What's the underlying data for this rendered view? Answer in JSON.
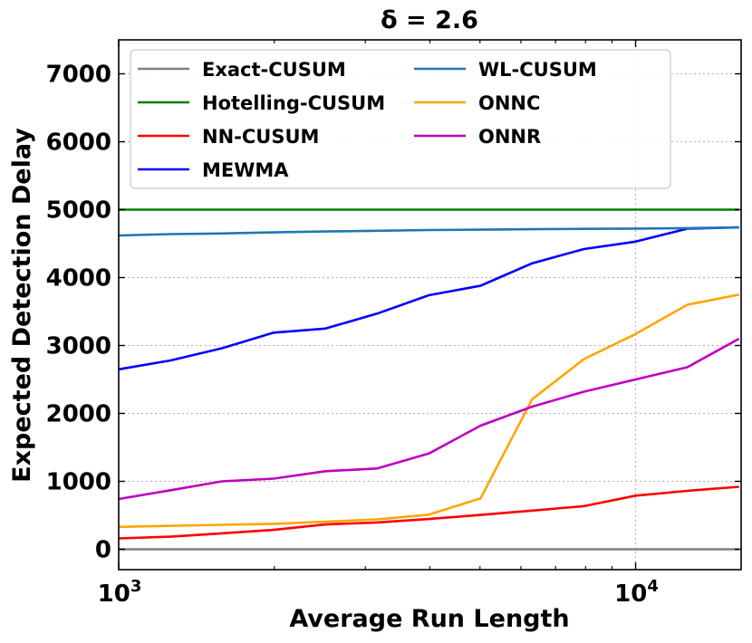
{
  "chart_data": {
    "type": "line",
    "title": "δ = 2.6",
    "xlabel": "Average Run Length",
    "ylabel": "Expected Detection Delay",
    "xscale": "log",
    "xlim": [
      1000,
      16000
    ],
    "ylim": [
      -300,
      7500
    ],
    "x_ticks": [
      {
        "value": 1000,
        "base": "10",
        "exp": "3"
      },
      {
        "value": 10000,
        "base": "10",
        "exp": "4"
      }
    ],
    "y_ticks": [
      0,
      1000,
      2000,
      3000,
      4000,
      5000,
      6000,
      7000
    ],
    "y_tick_labels": [
      "0",
      "1000",
      "2000",
      "3000",
      "4000",
      "5000",
      "6000",
      "7000"
    ],
    "grid": true,
    "legend_position": "top",
    "x": [
      1000,
      1260,
      1585,
      1995,
      2512,
      3162,
      3981,
      5012,
      6310,
      7943,
      10000,
      12589,
      15849
    ],
    "series": [
      {
        "name": "Exact-CUSUM",
        "color": "#808080",
        "values": [
          0,
          0,
          0,
          0,
          0,
          0,
          0,
          0,
          0,
          0,
          0,
          0,
          0
        ]
      },
      {
        "name": "Hotelling-CUSUM",
        "color": "#008000",
        "values": [
          5000,
          5000,
          5000,
          5000,
          5000,
          5000,
          5000,
          5000,
          5000,
          5000,
          5000,
          5000,
          5000
        ]
      },
      {
        "name": "NN-CUSUM",
        "color": "#ff0000",
        "values": [
          160,
          185,
          235,
          285,
          365,
          395,
          445,
          505,
          570,
          635,
          790,
          860,
          920
        ]
      },
      {
        "name": "MEWMA",
        "color": "#0000ff",
        "values": [
          2650,
          2780,
          2960,
          3190,
          3250,
          3470,
          3740,
          3880,
          4210,
          4420,
          4530,
          4720,
          4740
        ]
      },
      {
        "name": "WL-CUSUM",
        "color": "#1f77b4",
        "values": [
          4620,
          4640,
          4650,
          4665,
          4678,
          4690,
          4700,
          4705,
          4712,
          4718,
          4722,
          4728,
          4738
        ]
      },
      {
        "name": "ONNC",
        "color": "#ffa500",
        "values": [
          330,
          345,
          360,
          375,
          405,
          440,
          510,
          750,
          2210,
          2800,
          3170,
          3600,
          3750
        ]
      },
      {
        "name": "ONNR",
        "color": "#bf00bf",
        "values": [
          740,
          870,
          1000,
          1040,
          1150,
          1190,
          1410,
          1820,
          2100,
          2320,
          2500,
          2680,
          3100
        ]
      }
    ],
    "legend_columns": [
      [
        "Exact-CUSUM",
        "Hotelling-CUSUM",
        "NN-CUSUM",
        "MEWMA"
      ],
      [
        "WL-CUSUM",
        "ONNC",
        "ONNR"
      ]
    ]
  }
}
